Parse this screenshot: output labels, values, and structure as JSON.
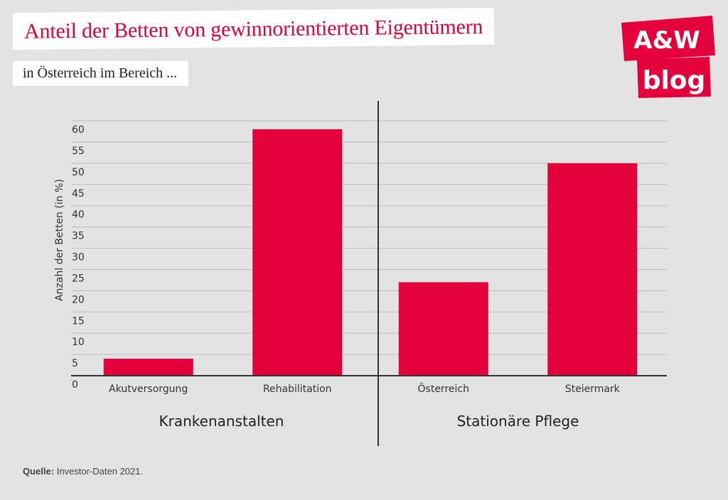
{
  "header": {
    "title": "Anteil der Betten von gewinnorientierten Eigentümern",
    "subtitle": "in Österreich im Bereich ..."
  },
  "logo": {
    "line1": "A&W",
    "line2": "blog",
    "color": "#e4003a"
  },
  "source": {
    "label": "Quelle:",
    "text": "Investor-Daten 2021."
  },
  "colors": {
    "bar": "#e4003a",
    "grid": "#bdbdbd",
    "axis": "#333333",
    "text": "#333333"
  },
  "chart_data": {
    "type": "bar",
    "ylabel": "Anzahl der Betten (in %)",
    "ylim": [
      0,
      60
    ],
    "yticks": [
      0,
      5,
      10,
      15,
      20,
      25,
      30,
      35,
      40,
      45,
      50,
      55,
      60
    ],
    "grid": true,
    "categories": [
      "Akutversorgung",
      "Rehabilitation",
      "Österreich",
      "Steiermark"
    ],
    "values": [
      4,
      58,
      22,
      50
    ],
    "groups": [
      {
        "label": "Krankenanstalten",
        "categories": [
          "Akutversorgung",
          "Rehabilitation"
        ]
      },
      {
        "label": "Stationäre Pflege",
        "categories": [
          "Österreich",
          "Steiermark"
        ]
      }
    ]
  }
}
